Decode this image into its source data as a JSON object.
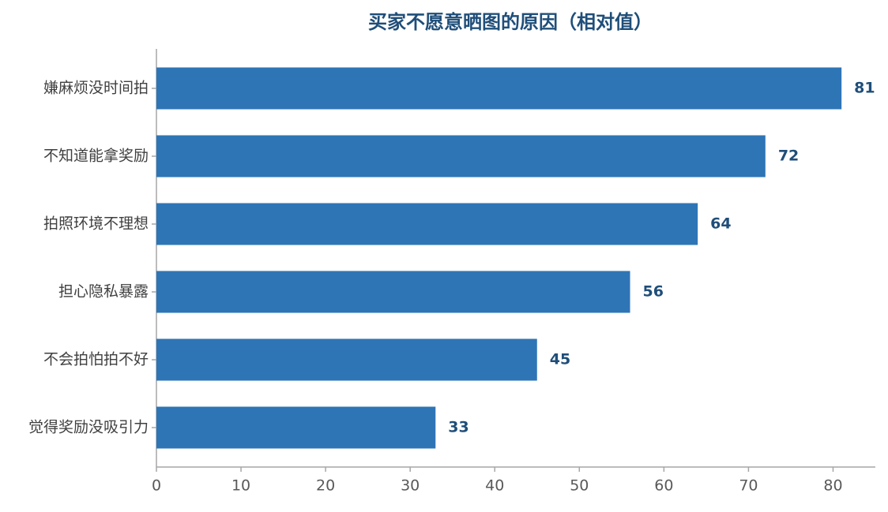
{
  "chart_data": {
    "type": "barh",
    "title": "买家不愿意晒图的原因（相对值）",
    "categories": [
      "嫌麻烦没时间拍",
      "不知道能拿奖励",
      "拍照环境不理想",
      "担心隐私暴露",
      "不会拍怕拍不好",
      "觉得奖励没吸引力"
    ],
    "values": [
      81,
      72,
      64,
      56,
      45,
      33
    ],
    "color": "#2e75b6",
    "xlim": [
      0,
      85
    ],
    "xticks": [
      0,
      10,
      20,
      30,
      40,
      50,
      60,
      70,
      80
    ],
    "grid": false
  }
}
